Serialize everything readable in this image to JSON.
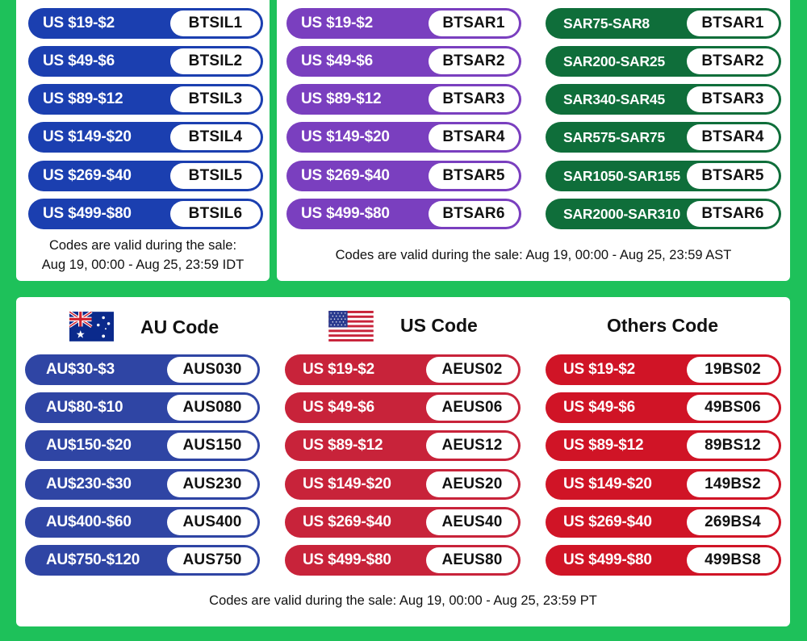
{
  "il_panel": {
    "rows": [
      {
        "deal": "US $19-$2",
        "code": "BTSIL1"
      },
      {
        "deal": "US $49-$6",
        "code": "BTSIL2"
      },
      {
        "deal": "US $89-$12",
        "code": "BTSIL3"
      },
      {
        "deal": "US $149-$20",
        "code": "BTSIL4"
      },
      {
        "deal": "US $269-$40",
        "code": "BTSIL5"
      },
      {
        "deal": "US $499-$80",
        "code": "BTSIL6"
      }
    ],
    "note_line1": "Codes are valid during the sale:",
    "note_line2": "Aug 19, 00:00 - Aug 25, 23:59 IDT"
  },
  "sa_panel": {
    "usd_rows": [
      {
        "deal": "US $19-$2",
        "code": "BTSAR1"
      },
      {
        "deal": "US $49-$6",
        "code": "BTSAR2"
      },
      {
        "deal": "US $89-$12",
        "code": "BTSAR3"
      },
      {
        "deal": "US $149-$20",
        "code": "BTSAR4"
      },
      {
        "deal": "US $269-$40",
        "code": "BTSAR5"
      },
      {
        "deal": "US $499-$80",
        "code": "BTSAR6"
      }
    ],
    "sar_rows": [
      {
        "deal": "SAR75-SAR8",
        "code": "BTSAR1"
      },
      {
        "deal": "SAR200-SAR25",
        "code": "BTSAR2"
      },
      {
        "deal": "SAR340-SAR45",
        "code": "BTSAR3"
      },
      {
        "deal": "SAR575-SAR75",
        "code": "BTSAR4"
      },
      {
        "deal": "SAR1050-SAR155",
        "code": "BTSAR5"
      },
      {
        "deal": "SAR2000-SAR310",
        "code": "BTSAR6"
      }
    ],
    "note": "Codes are valid during the sale: Aug 19, 00:00 - Aug 25, 23:59 AST"
  },
  "bottom_panel": {
    "au": {
      "title": "AU Code",
      "rows": [
        {
          "deal": "AU$30-$3",
          "code": "AUS030"
        },
        {
          "deal": "AU$80-$10",
          "code": "AUS080"
        },
        {
          "deal": "AU$150-$20",
          "code": "AUS150"
        },
        {
          "deal": "AU$230-$30",
          "code": "AUS230"
        },
        {
          "deal": "AU$400-$60",
          "code": "AUS400"
        },
        {
          "deal": "AU$750-$120",
          "code": "AUS750"
        }
      ]
    },
    "us": {
      "title": "US Code",
      "rows": [
        {
          "deal": "US $19-$2",
          "code": "AEUS02"
        },
        {
          "deal": "US $49-$6",
          "code": "AEUS06"
        },
        {
          "deal": "US $89-$12",
          "code": "AEUS12"
        },
        {
          "deal": "US $149-$20",
          "code": "AEUS20"
        },
        {
          "deal": "US $269-$40",
          "code": "AEUS40"
        },
        {
          "deal": "US $499-$80",
          "code": "AEUS80"
        }
      ]
    },
    "others": {
      "title": "Others Code",
      "rows": [
        {
          "deal": "US $19-$2",
          "code": "19BS02"
        },
        {
          "deal": "US $49-$6",
          "code": "49BS06"
        },
        {
          "deal": "US $89-$12",
          "code": "89BS12"
        },
        {
          "deal": "US $149-$20",
          "code": "149BS2"
        },
        {
          "deal": "US $269-$40",
          "code": "269BS4"
        },
        {
          "deal": "US $499-$80",
          "code": "499BS8"
        }
      ]
    },
    "note": "Codes are valid during the sale: Aug 19, 00:00 - Aug 25, 23:59 PT"
  },
  "colors": {
    "background": "#1ec15a",
    "il_pill": "#1b3fb0",
    "sa_usd_pill": "#7a3fbf",
    "sa_sar_pill": "#0f6e3a",
    "au_pill": "#2f45a4",
    "us_pill": "#c8233a",
    "others_pill": "#d01426"
  },
  "icons": {
    "au_flag": "australia-flag-icon",
    "us_flag": "us-flag-icon"
  }
}
